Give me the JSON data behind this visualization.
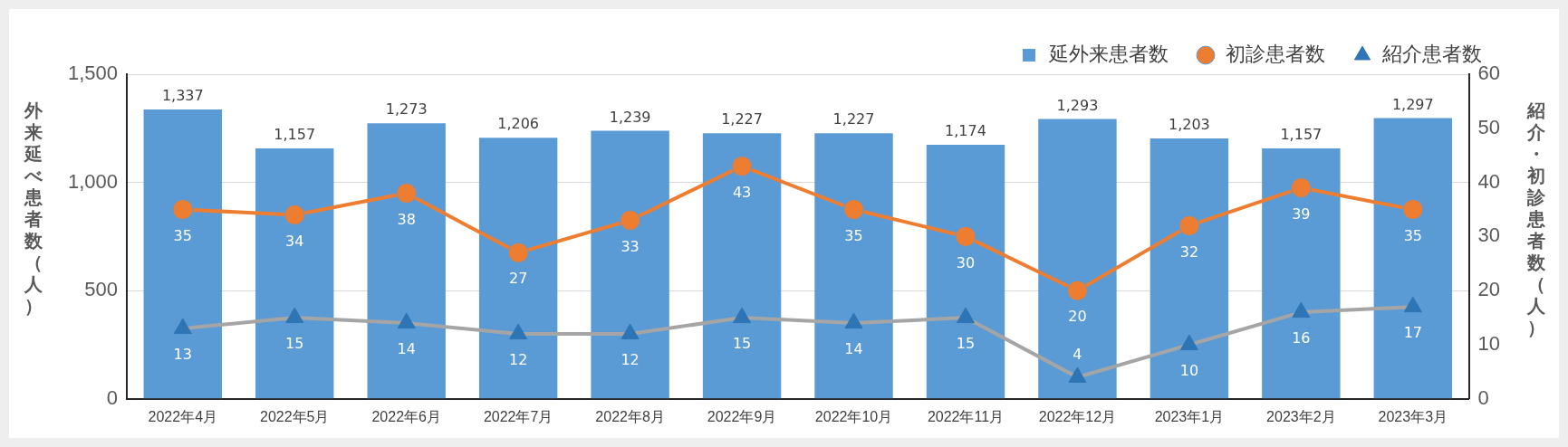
{
  "chart_data": {
    "type": "bar",
    "ylabel": "外来延べ患者数（人）",
    "y2label": "紹介・初診患者数（人）",
    "categories": [
      "2022年4月",
      "2022年5月",
      "2022年6月",
      "2022年7月",
      "2022年8月",
      "2022年9月",
      "2022年10月",
      "2022年11月",
      "2022年12月",
      "2023年1月",
      "2023年2月",
      "2023年3月"
    ],
    "series": [
      {
        "name": "延外来患者数",
        "color": "#5b9bd5",
        "values": [
          1337,
          1157,
          1273,
          1206,
          1239,
          1227,
          1227,
          1174,
          1293,
          1203,
          1157,
          1297
        ],
        "value_labels": [
          "1,337",
          "1,157",
          "1,273",
          "1,206",
          "1,239",
          "1,227",
          "1,227",
          "1,174",
          "1,293",
          "1,203",
          "1,157",
          "1,297"
        ]
      },
      {
        "name": "初診患者数",
        "type": "line",
        "axis": "y2",
        "marker": "circle",
        "color": "#ed7d31",
        "values": [
          35,
          34,
          38,
          27,
          33,
          43,
          35,
          30,
          20,
          32,
          39,
          35
        ]
      },
      {
        "name": "紹介患者数",
        "type": "line",
        "axis": "y2",
        "marker": "triangle",
        "color": "#a5a5a5",
        "values": [
          13,
          15,
          14,
          12,
          12,
          15,
          14,
          15,
          4,
          10,
          16,
          17
        ]
      }
    ],
    "ylim": [
      0,
      1500
    ],
    "yticks": [
      0,
      {
        "value": 500,
        "label": "500"
      },
      {
        "value": 1000,
        "label": "1,000"
      },
      {
        "value": 1500,
        "label": "1,500"
      }
    ],
    "y2lim": [
      0,
      60
    ],
    "y2ticks": [
      0,
      10,
      20,
      30,
      40,
      50,
      60
    ],
    "grid": "y",
    "legend": "top right",
    "data_labels": true
  }
}
